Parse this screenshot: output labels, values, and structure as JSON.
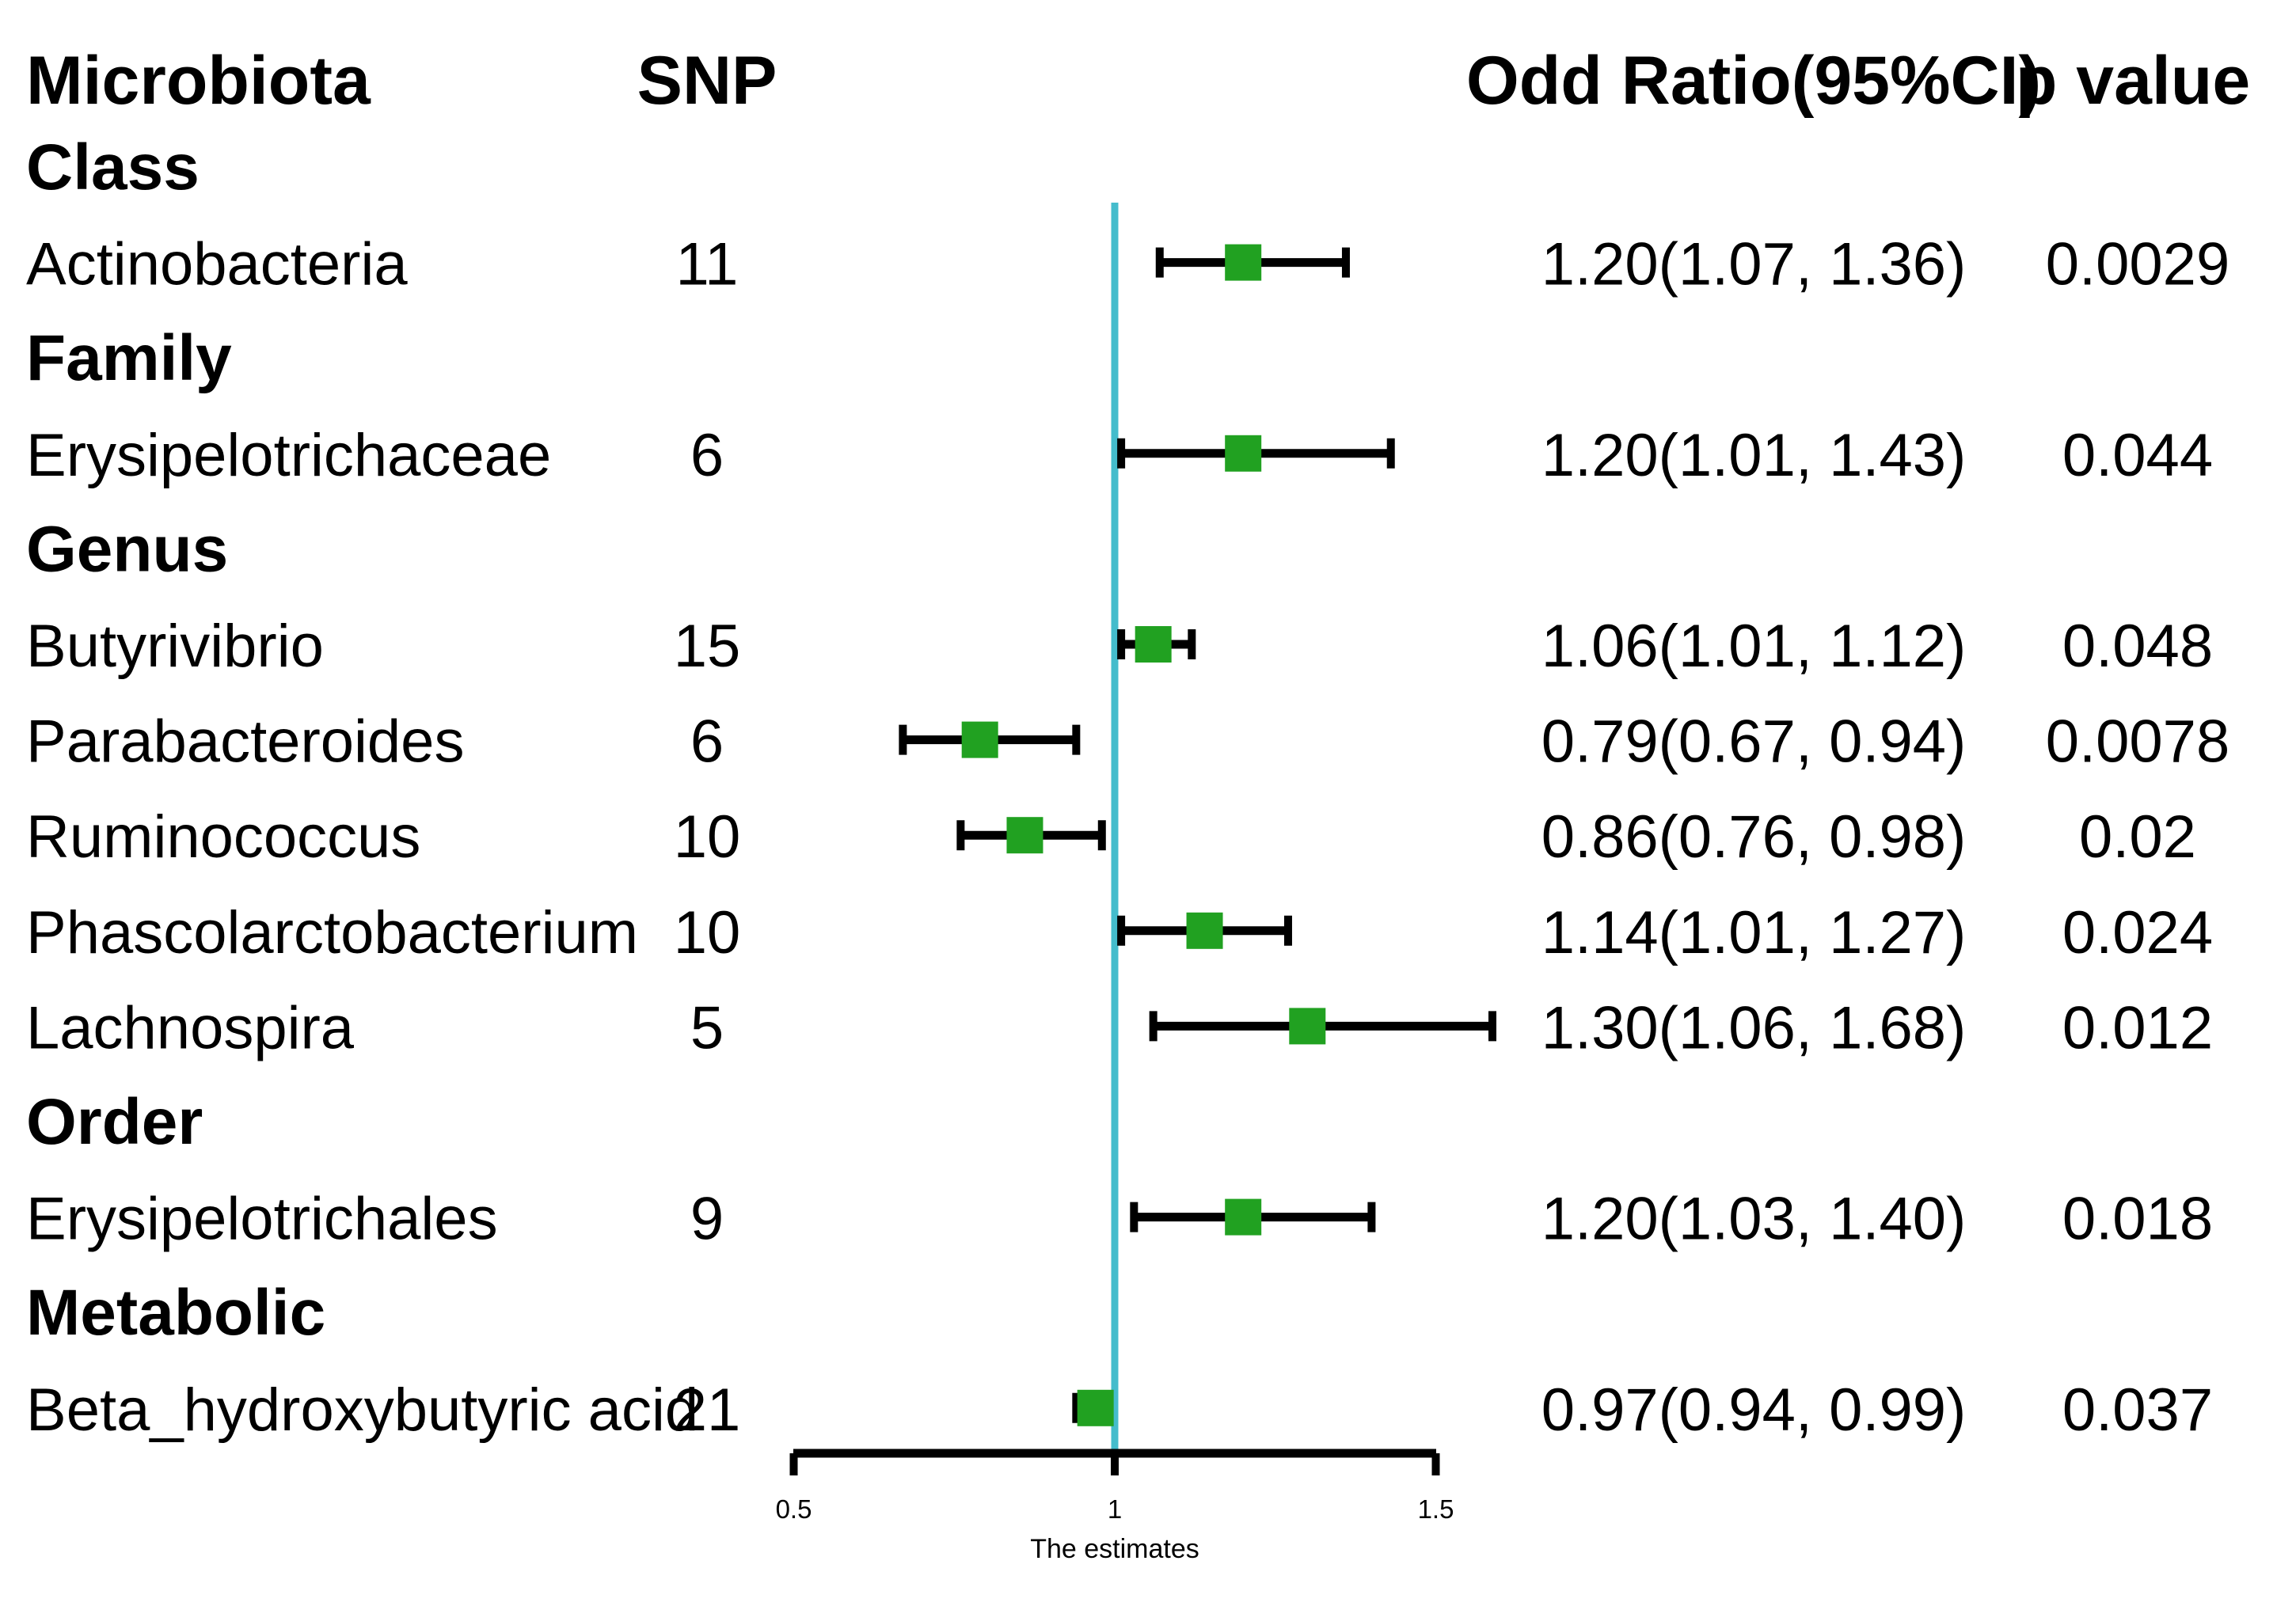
{
  "header": {
    "microbiota": "Microbiota",
    "snp": "SNP",
    "or": "Odd Ratio(95%CI)",
    "p": "p value"
  },
  "axis": {
    "label": "The estimates",
    "ticks": [
      {
        "value": 0.5,
        "label": "0.5"
      },
      {
        "value": 1,
        "label": "1"
      },
      {
        "value": 1.5,
        "label": "1.5"
      }
    ]
  },
  "colors": {
    "box_green": "#21A121",
    "reference_line": "#44BCCC",
    "error_bar": "#000000",
    "text": "#000000",
    "background": "#FFFFFF"
  },
  "chart_data": {
    "type": "forest",
    "title": "",
    "xlabel": "The estimates",
    "x_axis": {
      "scale": "linear",
      "ticks": [
        0.5,
        1,
        1.5
      ],
      "tick_labels": [
        "0.5",
        "1",
        "1.5"
      ],
      "reference_value": 1,
      "axis_range_drawn": [
        0.5,
        1.5
      ],
      "clip_drawn_upper": 1.59
    },
    "columns": [
      "Microbiota",
      "SNP",
      "Odd Ratio(95%CI)",
      "p value"
    ],
    "rows": [
      {
        "kind": "group",
        "label": "Class"
      },
      {
        "kind": "item",
        "label": "Actinobacteria",
        "snp": "11",
        "or": 1.2,
        "ci_low": 1.07,
        "ci_high": 1.36,
        "or_ci_text": "1.20(1.07, 1.36)",
        "p_value": "0.0029"
      },
      {
        "kind": "group",
        "label": "Family"
      },
      {
        "kind": "item",
        "label": "Erysipelotrichaceae",
        "snp": "6",
        "or": 1.2,
        "ci_low": 1.01,
        "ci_high": 1.43,
        "or_ci_text": "1.20(1.01, 1.43)",
        "p_value": "0.044"
      },
      {
        "kind": "group",
        "label": "Genus"
      },
      {
        "kind": "item",
        "label": "Butyrivibrio",
        "snp": "15",
        "or": 1.06,
        "ci_low": 1.01,
        "ci_high": 1.12,
        "or_ci_text": "1.06(1.01, 1.12)",
        "p_value": "0.048"
      },
      {
        "kind": "item",
        "label": "Parabacteroides",
        "snp": "6",
        "or": 0.79,
        "ci_low": 0.67,
        "ci_high": 0.94,
        "or_ci_text": "0.79(0.67, 0.94)",
        "p_value": "0.0078"
      },
      {
        "kind": "item",
        "label": "Ruminococcus",
        "snp": "10",
        "or": 0.86,
        "ci_low": 0.76,
        "ci_high": 0.98,
        "or_ci_text": "0.86(0.76, 0.98)",
        "p_value": "0.02"
      },
      {
        "kind": "item",
        "label": "Phascolarctobacterium",
        "snp": "10",
        "or": 1.14,
        "ci_low": 1.01,
        "ci_high": 1.27,
        "or_ci_text": "1.14(1.01, 1.27)",
        "p_value": "0.024"
      },
      {
        "kind": "item",
        "label": "Lachnospira",
        "snp": "5",
        "or": 1.3,
        "ci_low": 1.06,
        "ci_high": 1.68,
        "or_ci_text": "1.30(1.06, 1.68)",
        "p_value": "0.012"
      },
      {
        "kind": "group",
        "label": "Order"
      },
      {
        "kind": "item",
        "label": "Erysipelotrichales",
        "snp": "9",
        "or": 1.2,
        "ci_low": 1.03,
        "ci_high": 1.4,
        "or_ci_text": "1.20(1.03, 1.40)",
        "p_value": "0.018"
      },
      {
        "kind": "group",
        "label": "Metabolic"
      },
      {
        "kind": "item",
        "label": "Beta_hydroxybutyric acid",
        "snp": "21",
        "or": 0.97,
        "ci_low": 0.94,
        "ci_high": 0.99,
        "or_ci_text": "0.97(0.94, 0.99)",
        "p_value": "0.037"
      }
    ]
  }
}
